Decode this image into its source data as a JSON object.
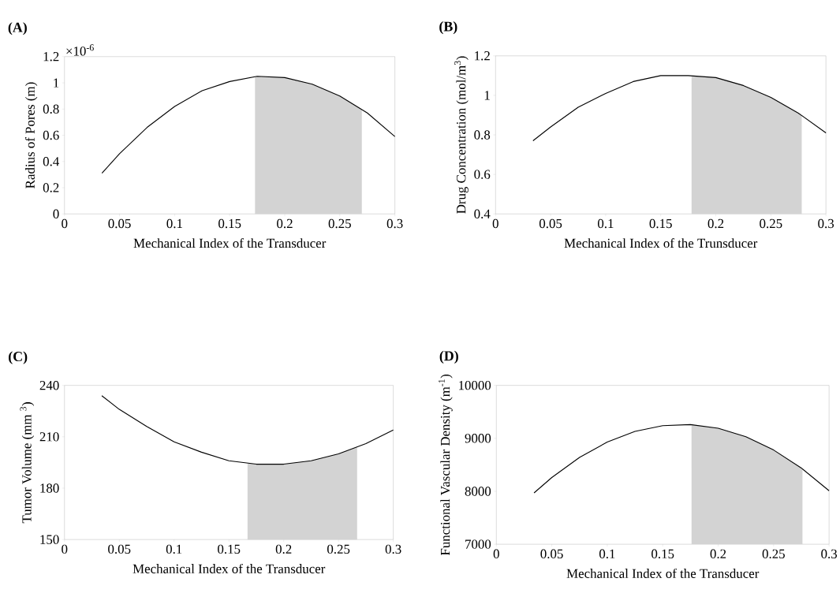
{
  "chart_data": [
    {
      "type": "line",
      "title": "(A)",
      "xlabel": "Mechanical Index of the Transducer",
      "ylabel": "Radius of Pores (m)",
      "annotations": [
        "×10$^{-6}$"
      ],
      "x": [
        0.034,
        0.05,
        0.075,
        0.1,
        0.125,
        0.15,
        0.175,
        0.2,
        0.225,
        0.25,
        0.275,
        0.3
      ],
      "values": [
        0.31,
        0.46,
        0.66,
        0.82,
        0.94,
        1.01,
        1.05,
        1.04,
        0.99,
        0.9,
        0.77,
        0.59
      ],
      "color": "#000000",
      "bands": [
        {
          "axis": "x",
          "from": 0.173,
          "to": 0.27,
          "color": "#d3d3d3"
        }
      ],
      "xlim": [
        0,
        0.3
      ],
      "xticks": [
        0,
        0.05,
        0.1,
        0.15,
        0.2,
        0.25,
        0.3
      ],
      "ylim": [
        0,
        1.2
      ],
      "yticks": [
        0,
        0.2,
        0.4,
        0.6,
        0.8,
        1,
        1.2
      ]
    },
    {
      "type": "line",
      "title": "(B)",
      "xlabel": "Mechanical Index of the Trunsducer",
      "ylabel": "Drug Concentration (mol/m$^{3}$)",
      "x": [
        0.034,
        0.05,
        0.075,
        0.1,
        0.125,
        0.15,
        0.175,
        0.2,
        0.225,
        0.25,
        0.275,
        0.3
      ],
      "values": [
        0.77,
        0.84,
        0.94,
        1.01,
        1.07,
        1.1,
        1.1,
        1.09,
        1.05,
        0.99,
        0.91,
        0.81
      ],
      "color": "#000000",
      "bands": [
        {
          "axis": "x",
          "from": 0.178,
          "to": 0.278,
          "color": "#d3d3d3"
        }
      ],
      "xlim": [
        0,
        0.3
      ],
      "xticks": [
        0,
        0.05,
        0.1,
        0.15,
        0.2,
        0.25,
        0.3
      ],
      "ylim": [
        0.4,
        1.2
      ],
      "yticks": [
        0.4,
        0.6,
        0.8,
        1,
        1.2
      ]
    },
    {
      "type": "line",
      "title": "(C)",
      "xlabel": "Mechanical Index of the Transducer",
      "ylabel": "Tumor Volume (mm $^{3}$)",
      "x": [
        0.034,
        0.05,
        0.075,
        0.1,
        0.125,
        0.15,
        0.175,
        0.2,
        0.225,
        0.25,
        0.275,
        0.3
      ],
      "values": [
        234,
        226,
        216,
        207,
        201,
        196,
        194,
        194,
        196,
        200,
        206,
        214
      ],
      "color": "#000000",
      "bands": [
        {
          "axis": "x",
          "from": 0.167,
          "to": 0.267,
          "color": "#d3d3d3"
        }
      ],
      "xlim": [
        0,
        0.3
      ],
      "xticks": [
        0,
        0.05,
        0.1,
        0.15,
        0.2,
        0.25,
        0.3
      ],
      "ylim": [
        150,
        240
      ],
      "yticks": [
        150,
        180,
        210,
        240
      ]
    },
    {
      "type": "line",
      "title": "(D)",
      "xlabel": "Mechanical Index of the Transducer",
      "ylabel": "Functional Vascular Density (m$^{-1}$)",
      "x": [
        0.034,
        0.05,
        0.075,
        0.1,
        0.125,
        0.15,
        0.175,
        0.2,
        0.225,
        0.25,
        0.275,
        0.3
      ],
      "values": [
        7970,
        8260,
        8640,
        8930,
        9130,
        9240,
        9260,
        9190,
        9030,
        8780,
        8440,
        8010
      ],
      "color": "#000000",
      "bands": [
        {
          "axis": "x",
          "from": 0.176,
          "to": 0.276,
          "color": "#d3d3d3"
        }
      ],
      "xlim": [
        0,
        0.3
      ],
      "xticks": [
        0,
        0.05,
        0.1,
        0.15,
        0.2,
        0.25,
        0.3
      ],
      "ylim": [
        7000,
        10000
      ],
      "yticks": [
        7000,
        8000,
        9000,
        10000
      ]
    }
  ]
}
